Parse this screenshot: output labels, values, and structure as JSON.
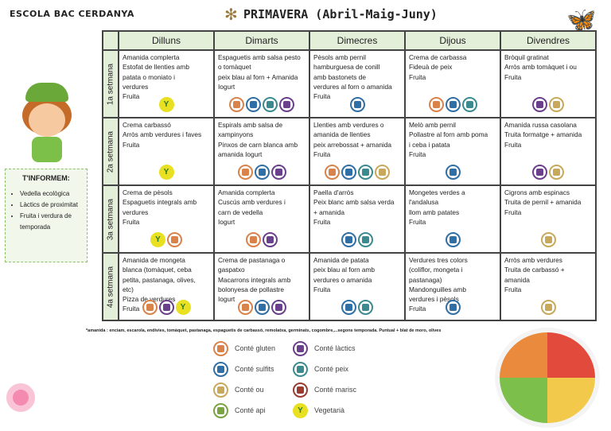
{
  "header": {
    "school": "ESCOLA BAC CERDANYA",
    "title": "PRIMAVERA (Abril-Maig-Juny)"
  },
  "days": [
    "Dilluns",
    "Dimarts",
    "Dimecres",
    "Dijous",
    "Divendres"
  ],
  "weeks": [
    {
      "label": "1a setmana",
      "cells": [
        {
          "lines": [
            "Amanida complerta",
            "Estofat de llenties amb",
            "patata o moniato i",
            "verdures",
            "Fruita"
          ],
          "icons": [
            "veg"
          ]
        },
        {
          "lines": [
            "Espaguetis amb salsa pesto",
            "o tomàquet",
            "peix blau al forn + Amanida",
            "Iogurt"
          ],
          "icons": [
            "gluten",
            "sulfits",
            "peix",
            "lactics"
          ]
        },
        {
          "lines": [
            "Pèsols amb pernil",
            "hamburguesa de conill",
            "amb bastonets de",
            "verdures al forn o amanida",
            " Fruita"
          ],
          "icons": [
            "sulfits"
          ]
        },
        {
          "lines": [
            "Crema de carbassa",
            "Fideuà de peix",
            "Fruita"
          ],
          "icons": [
            "gluten",
            "sulfits",
            "peix"
          ]
        },
        {
          "lines": [
            "Bròquil gratinat",
            "Arròs amb tomàquet i ou",
            "Fruita"
          ],
          "icons": [
            "lactics",
            "ou"
          ]
        }
      ]
    },
    {
      "label": "2a setmana",
      "cells": [
        {
          "lines": [
            "Crema carbassó",
            "Arròs amb verdures i faves",
            " Fruita"
          ],
          "icons": [
            "veg"
          ]
        },
        {
          "lines": [
            "Espirals amb salsa de",
            "xampinyons",
            "Pinxos de carn blanca amb",
            "amanida   Iogurt"
          ],
          "icons": [
            "gluten",
            "sulfits",
            "lactics"
          ]
        },
        {
          "lines": [
            "Llenties amb verdures o",
            "amanida de llenties",
            "peix arrebossat + amanida",
            "Fruita"
          ],
          "icons": [
            "gluten",
            "sulfits",
            "peix",
            "ou"
          ]
        },
        {
          "lines": [
            "Melò amb pernil",
            "Pollastre al forn amb poma",
            "i ceba i patata",
            " Fruita"
          ],
          "icons": [
            "sulfits"
          ]
        },
        {
          "lines": [
            "Amanida russa casolana",
            "Truita formatge + amanida",
            "Fruita"
          ],
          "icons": [
            "lactics",
            "ou"
          ]
        }
      ]
    },
    {
      "label": "3a setmana",
      "cells": [
        {
          "lines": [
            "Crema de pèsols",
            "Espaguetis integrals amb",
            "verdures",
            " Fruita"
          ],
          "icons": [
            "veg",
            "gluten"
          ]
        },
        {
          "lines": [
            "Amanida complerta",
            "Cuscús amb verdures i",
            "carn de vedella",
            " Iogurt"
          ],
          "icons": [
            "gluten",
            "lactics"
          ]
        },
        {
          "lines": [
            "Paella d'arròs",
            "Peix blanc amb salsa verda",
            "+ amanida",
            " Fruita"
          ],
          "icons": [
            "sulfits",
            "peix"
          ]
        },
        {
          "lines": [
            "Mongetes verdes a",
            "l'andalusa",
            "llom amb patates",
            " Fruita"
          ],
          "icons": [
            "sulfits"
          ]
        },
        {
          "lines": [
            "Cigrons amb espinacs",
            "Truita de pernil  + amanida",
            " Fruita"
          ],
          "icons": [
            "ou"
          ]
        }
      ]
    },
    {
      "label": "4a setmana",
      "cells": [
        {
          "lines": [
            "Amanida de mongeta",
            "blanca (tomàquet, ceba",
            "petita, pastanaga, olives,",
            "etc)",
            "Pizza de verdures",
            "Fruita"
          ],
          "icons": [
            "gluten",
            "lactics",
            "veg"
          ]
        },
        {
          "lines": [
            "Crema de pastanaga o",
            "gaspatxo",
            "Macarrons integrals amb",
            "bolonyesa de pollastre",
            "Iogurt"
          ],
          "icons": [
            "gluten",
            "sulfits",
            "lactics"
          ]
        },
        {
          "lines": [
            "Amanida de patata",
            "peix blau al forn amb",
            "verdures o amanida",
            " Fruita"
          ],
          "icons": [
            "sulfits",
            "peix"
          ]
        },
        {
          "lines": [
            "Verdures tres colors",
            "(coliflor, mongeta i",
            "pastanaga)",
            "Mandonguilles amb",
            "verdures  i pèsols",
            " Fruita"
          ],
          "icons": [
            "sulfits"
          ]
        },
        {
          "lines": [
            "Arròs amb verdures",
            "Truita de carbassó +",
            "amanida",
            "Fruita"
          ],
          "icons": [
            "ou"
          ]
        }
      ]
    }
  ],
  "footnote": "*amanida : enciam, escarola, endívies,  tomàquet, pastanaga, espaguetis de carbassó, remolatxa, germinats, cogombre,...segons temporada. Puntual + blat de moro, olives",
  "legend": [
    {
      "key": "gluten",
      "label": "Conté gluten"
    },
    {
      "key": "lactics",
      "label": "Conté làctics"
    },
    {
      "key": "sulfits",
      "label": "Conté sulfits"
    },
    {
      "key": "peix",
      "label": "Conté peix"
    },
    {
      "key": "ou",
      "label": "Conté ou"
    },
    {
      "key": "marisc",
      "label": "Conté marisc"
    },
    {
      "key": "api",
      "label": "Conté api"
    },
    {
      "key": "veg",
      "label": "Vegetarià"
    }
  ],
  "info": {
    "title": "T'INFORMEM:",
    "items": [
      "Vedella ecològica",
      "Làctics de proximitat",
      "Fruita i verdura de temporada"
    ]
  },
  "icon_colors": {
    "gluten": "#d9824a",
    "sulfits": "#2f6fa6",
    "ou": "#c8a85a",
    "api": "#7aa341",
    "lactics": "#6a3f8c",
    "peix": "#3a8a8f",
    "marisc": "#9b3b30",
    "veg": "#e8e020"
  }
}
